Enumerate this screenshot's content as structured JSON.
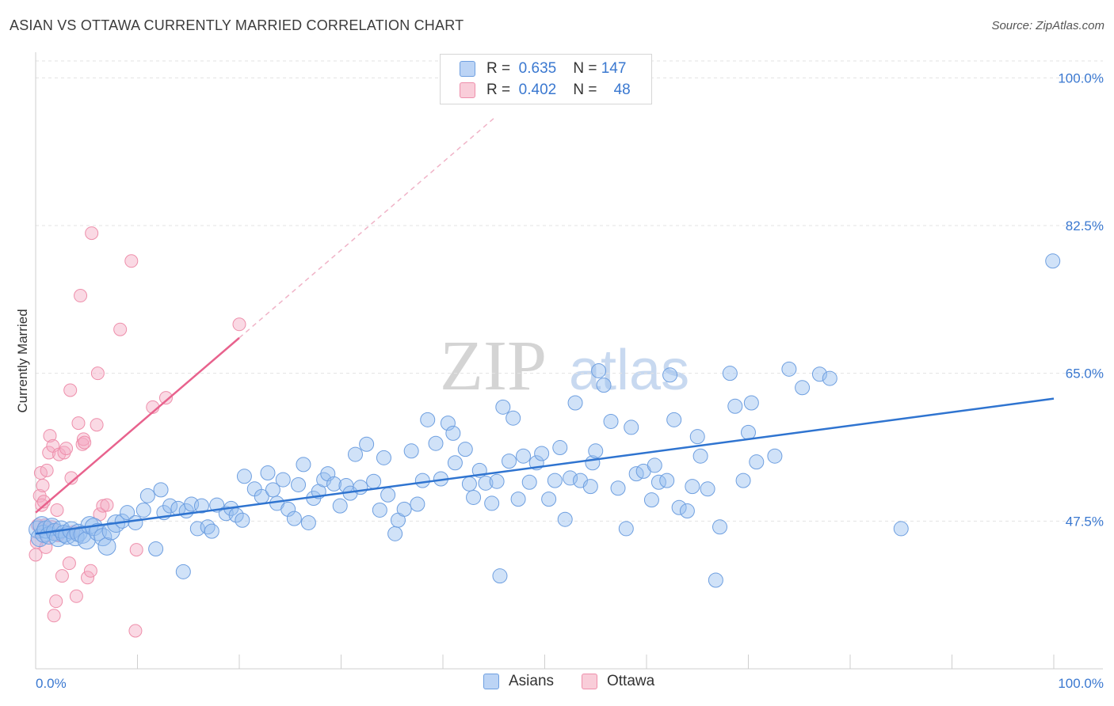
{
  "title": "ASIAN VS OTTAWA CURRENTLY MARRIED CORRELATION CHART",
  "source": "Source: ZipAtlas.com",
  "watermark": {
    "part1": "ZIP",
    "part2": "atlas"
  },
  "legend": {
    "rows": [
      {
        "r_key": "R =",
        "r_value": "0.635",
        "n_key": "N =",
        "n_value": "147"
      },
      {
        "r_key": "R =",
        "r_value": "0.402",
        "n_key": "N =",
        "n_value": "48"
      }
    ]
  },
  "chart_data": {
    "type": "scatter",
    "title": "ASIAN VS OTTAWA CURRENTLY MARRIED CORRELATION CHART",
    "xlabel": "",
    "ylabel": "Currently Married",
    "xlim": [
      0,
      100
    ],
    "ylim": [
      30,
      102
    ],
    "x_tick_labels": [
      "0.0%",
      "100.0%"
    ],
    "y_ticks": [
      47.5,
      65.0,
      82.5,
      100.0
    ],
    "y_tick_labels": [
      "47.5%",
      "65.0%",
      "82.5%",
      "100.0%"
    ],
    "colors": {
      "Asians": "#5b8fd9",
      "Ottawa": "#ef7fa0",
      "asians_line": "#2f74d0",
      "ottawa_line": "#e8628d",
      "tick_text": "#3a78d0"
    },
    "series": [
      {
        "name": "Asians",
        "r": 0.635,
        "n": 147,
        "trend": {
          "x0": 0,
          "y0": 46.0,
          "x1": 100,
          "y1": 62.0
        },
        "points": [
          [
            0.2,
            46.5
          ],
          [
            0.4,
            45.5
          ],
          [
            0.6,
            47
          ],
          [
            0.8,
            46
          ],
          [
            1.0,
            46.5
          ],
          [
            1.3,
            45.8
          ],
          [
            1.6,
            46.8
          ],
          [
            1.9,
            46.2
          ],
          [
            2.2,
            45.5
          ],
          [
            2.5,
            46.5
          ],
          [
            2.8,
            46
          ],
          [
            3.1,
            45.8
          ],
          [
            3.5,
            46.4
          ],
          [
            3.9,
            45.6
          ],
          [
            4.2,
            46.1
          ],
          [
            4.6,
            45.9
          ],
          [
            5.0,
            45.2
          ],
          [
            5.3,
            47
          ],
          [
            5.7,
            46.8
          ],
          [
            6.1,
            46.2
          ],
          [
            6.6,
            45.6
          ],
          [
            7.0,
            44.5
          ],
          [
            7.4,
            46.3
          ],
          [
            7.9,
            47.2
          ],
          [
            8.5,
            47.5
          ],
          [
            9.0,
            48.5
          ],
          [
            9.8,
            47.3
          ],
          [
            10.6,
            48.8
          ],
          [
            11.0,
            50.5
          ],
          [
            11.8,
            44.2
          ],
          [
            12.3,
            51.2
          ],
          [
            12.6,
            48.5
          ],
          [
            13.2,
            49.3
          ],
          [
            14.0,
            49
          ],
          [
            14.5,
            41.5
          ],
          [
            14.8,
            48.7
          ],
          [
            15.3,
            49.5
          ],
          [
            15.9,
            46.6
          ],
          [
            16.3,
            49.3
          ],
          [
            16.9,
            46.8
          ],
          [
            17.3,
            46.3
          ],
          [
            17.8,
            49.4
          ],
          [
            18.7,
            48.4
          ],
          [
            19.2,
            49
          ],
          [
            19.7,
            48.2
          ],
          [
            20.3,
            47.6
          ],
          [
            20.5,
            52.8
          ],
          [
            21.5,
            51.3
          ],
          [
            22.2,
            50.4
          ],
          [
            22.8,
            53.2
          ],
          [
            23.3,
            51.2
          ],
          [
            23.7,
            49.6
          ],
          [
            24.3,
            52.4
          ],
          [
            24.8,
            48.9
          ],
          [
            25.4,
            47.8
          ],
          [
            25.8,
            51.8
          ],
          [
            26.3,
            54.2
          ],
          [
            26.8,
            47.3
          ],
          [
            27.3,
            50.2
          ],
          [
            27.8,
            51
          ],
          [
            28.3,
            52.4
          ],
          [
            28.7,
            53.1
          ],
          [
            29.3,
            51.9
          ],
          [
            29.9,
            49.3
          ],
          [
            30.5,
            51.7
          ],
          [
            30.9,
            50.8
          ],
          [
            31.4,
            55.4
          ],
          [
            31.9,
            51.5
          ],
          [
            32.5,
            56.6
          ],
          [
            33.2,
            52.2
          ],
          [
            33.8,
            48.8
          ],
          [
            34.2,
            55
          ],
          [
            34.6,
            50.6
          ],
          [
            35.3,
            46
          ],
          [
            35.6,
            47.6
          ],
          [
            36.2,
            48.9
          ],
          [
            36.9,
            55.8
          ],
          [
            37.5,
            49.5
          ],
          [
            38.0,
            52.3
          ],
          [
            38.5,
            59.5
          ],
          [
            39.3,
            56.7
          ],
          [
            39.8,
            52.5
          ],
          [
            40.5,
            59.1
          ],
          [
            41.0,
            57.9
          ],
          [
            41.2,
            54.4
          ],
          [
            42.2,
            56
          ],
          [
            42.6,
            51.9
          ],
          [
            43.0,
            50.3
          ],
          [
            43.6,
            53.5
          ],
          [
            44.2,
            52
          ],
          [
            44.8,
            49.6
          ],
          [
            45.3,
            52.2
          ],
          [
            45.6,
            41
          ],
          [
            45.9,
            61
          ],
          [
            46.5,
            54.6
          ],
          [
            46.9,
            59.7
          ],
          [
            47.4,
            50.1
          ],
          [
            47.9,
            55.2
          ],
          [
            48.5,
            52.1
          ],
          [
            49.2,
            54.4
          ],
          [
            49.7,
            55.5
          ],
          [
            50.4,
            50.1
          ],
          [
            51.0,
            52.3
          ],
          [
            51.5,
            56.2
          ],
          [
            52.0,
            47.7
          ],
          [
            52.5,
            52.6
          ],
          [
            53.0,
            61.5
          ],
          [
            53.5,
            52.3
          ],
          [
            54.5,
            51.6
          ],
          [
            54.7,
            54.4
          ],
          [
            55.0,
            55.8
          ],
          [
            55.3,
            65.3
          ],
          [
            55.8,
            63.6
          ],
          [
            56.5,
            59.3
          ],
          [
            57.2,
            51.4
          ],
          [
            58.0,
            46.6
          ],
          [
            58.5,
            58.6
          ],
          [
            59.0,
            53.1
          ],
          [
            59.7,
            53.4
          ],
          [
            60.5,
            50
          ],
          [
            60.8,
            54.1
          ],
          [
            61.2,
            52.1
          ],
          [
            62.0,
            52.3
          ],
          [
            62.3,
            64.8
          ],
          [
            62.7,
            59.5
          ],
          [
            63.2,
            49.1
          ],
          [
            64.0,
            48.7
          ],
          [
            64.5,
            51.6
          ],
          [
            65.0,
            57.5
          ],
          [
            65.3,
            55.2
          ],
          [
            66.0,
            51.3
          ],
          [
            66.8,
            40.5
          ],
          [
            67.2,
            46.8
          ],
          [
            68.2,
            65
          ],
          [
            68.7,
            61.1
          ],
          [
            69.5,
            52.3
          ],
          [
            70.0,
            58
          ],
          [
            70.3,
            61.5
          ],
          [
            70.8,
            54.5
          ],
          [
            72.6,
            55.2
          ],
          [
            74.0,
            65.5
          ],
          [
            75.3,
            63.3
          ],
          [
            77.0,
            64.9
          ],
          [
            78.0,
            64.4
          ],
          [
            85.0,
            46.6
          ],
          [
            99.9,
            78.3
          ]
        ]
      },
      {
        "name": "Ottawa",
        "r": 0.402,
        "n": 48,
        "trend": {
          "x0": 0,
          "y0": 48.5,
          "x1": 20,
          "y1": 69.2,
          "extend_x1": 45,
          "extend_y1": 95.2
        },
        "points": [
          [
            0.0,
            43.5
          ],
          [
            0.1,
            45
          ],
          [
            0.2,
            47
          ],
          [
            0.4,
            50.5
          ],
          [
            0.5,
            53.2
          ],
          [
            0.6,
            49.4
          ],
          [
            0.7,
            51.7
          ],
          [
            0.8,
            49.8
          ],
          [
            0.9,
            47
          ],
          [
            1.0,
            44.4
          ],
          [
            1.1,
            53.5
          ],
          [
            1.3,
            55.6
          ],
          [
            1.4,
            57.6
          ],
          [
            1.6,
            46.8
          ],
          [
            1.7,
            56.4
          ],
          [
            1.8,
            36.3
          ],
          [
            2.0,
            38
          ],
          [
            2.1,
            48.8
          ],
          [
            2.2,
            45.8
          ],
          [
            2.3,
            55.4
          ],
          [
            2.6,
            41
          ],
          [
            2.8,
            55.6
          ],
          [
            3.0,
            56.1
          ],
          [
            3.3,
            42.5
          ],
          [
            3.4,
            63
          ],
          [
            3.5,
            52.6
          ],
          [
            3.7,
            46.2
          ],
          [
            4.0,
            38.6
          ],
          [
            4.2,
            59.1
          ],
          [
            4.4,
            74.2
          ],
          [
            4.6,
            56.6
          ],
          [
            4.7,
            57.2
          ],
          [
            4.8,
            56.8
          ],
          [
            5.1,
            40.8
          ],
          [
            5.4,
            41.6
          ],
          [
            5.5,
            81.6
          ],
          [
            6.0,
            58.9
          ],
          [
            6.1,
            65
          ],
          [
            6.3,
            48.3
          ],
          [
            6.6,
            49.3
          ],
          [
            7.0,
            49.4
          ],
          [
            8.3,
            70.2
          ],
          [
            9.4,
            78.3
          ],
          [
            9.8,
            34.5
          ],
          [
            9.9,
            44.1
          ],
          [
            11.5,
            61
          ],
          [
            12.8,
            62.1
          ],
          [
            20.0,
            70.8
          ]
        ]
      }
    ]
  },
  "bottom_legend": {
    "items": [
      "Asians",
      "Ottawa"
    ]
  }
}
